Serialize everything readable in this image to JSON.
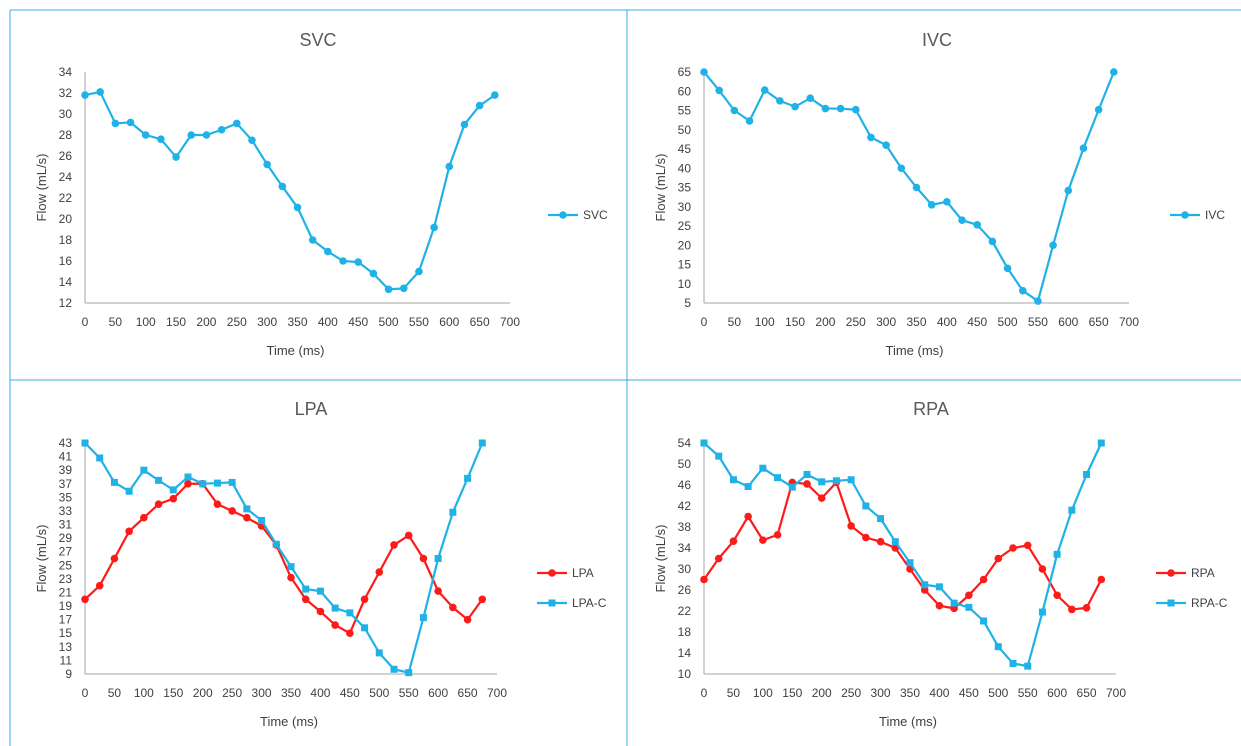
{
  "colors": {
    "blue": "#1fb2e6",
    "red": "#ff1a1a",
    "panel_border": "#3aaedc",
    "axis": "#a6a6a6"
  },
  "chart_data": [
    {
      "type": "line",
      "title": "SVC",
      "xlabel": "Time (ms)",
      "ylabel": "Flow (mL/s)",
      "xlim": [
        0,
        700
      ],
      "ylim": [
        12,
        34
      ],
      "xticks": [
        0,
        50,
        100,
        150,
        200,
        250,
        300,
        350,
        400,
        450,
        500,
        550,
        600,
        650,
        700
      ],
      "yticks": [
        12,
        14,
        16,
        18,
        20,
        22,
        24,
        26,
        28,
        30,
        32,
        34
      ],
      "legend_position": "right",
      "series": [
        {
          "name": "SVC",
          "color": "#1fb2e6",
          "marker": "circle",
          "x": [
            0,
            25,
            50,
            75,
            100,
            125,
            150,
            175,
            200,
            225,
            250,
            275,
            300,
            325,
            350,
            375,
            400,
            425,
            450,
            475,
            500,
            525,
            550,
            575,
            600,
            625,
            650,
            675
          ],
          "y": [
            31.8,
            32.1,
            29.1,
            29.2,
            28.0,
            27.6,
            25.9,
            28.0,
            28.0,
            28.5,
            29.1,
            27.5,
            25.2,
            23.1,
            21.1,
            18.0,
            16.9,
            16.0,
            15.9,
            14.8,
            13.3,
            13.4,
            15.0,
            19.2,
            25.0,
            29.0,
            30.8,
            31.8
          ]
        }
      ]
    },
    {
      "type": "line",
      "title": "IVC",
      "xlabel": "Time (ms)",
      "ylabel": "Flow (mL/s)",
      "xlim": [
        0,
        700
      ],
      "ylim": [
        5,
        65
      ],
      "xticks": [
        0,
        50,
        100,
        150,
        200,
        250,
        300,
        350,
        400,
        450,
        500,
        550,
        600,
        650,
        700
      ],
      "yticks": [
        5,
        10,
        15,
        20,
        25,
        30,
        35,
        40,
        45,
        50,
        55,
        60,
        65
      ],
      "legend_position": "right",
      "series": [
        {
          "name": "IVC",
          "color": "#1fb2e6",
          "marker": "circle",
          "x": [
            0,
            25,
            50,
            75,
            100,
            125,
            150,
            175,
            200,
            225,
            250,
            275,
            300,
            325,
            350,
            375,
            400,
            425,
            450,
            475,
            500,
            525,
            550,
            575,
            600,
            625,
            650,
            675
          ],
          "y": [
            65,
            60.2,
            55.0,
            52.3,
            60.3,
            57.5,
            56.0,
            58.2,
            55.5,
            55.5,
            55.2,
            48.0,
            46.0,
            40.0,
            35.0,
            30.5,
            31.3,
            26.5,
            25.3,
            21.0,
            14.0,
            8.2,
            5.5,
            20.0,
            34.2,
            45.2,
            55.2,
            65.0
          ]
        }
      ]
    },
    {
      "type": "line",
      "title": "LPA",
      "xlabel": "Time (ms)",
      "ylabel": "Flow (mL/s)",
      "xlim": [
        0,
        700
      ],
      "ylim": [
        9,
        43
      ],
      "xticks": [
        0,
        50,
        100,
        150,
        200,
        250,
        300,
        350,
        400,
        450,
        500,
        550,
        600,
        650,
        700
      ],
      "yticks": [
        9,
        11,
        13,
        15,
        17,
        19,
        21,
        23,
        25,
        27,
        29,
        31,
        33,
        35,
        37,
        39,
        41,
        43
      ],
      "legend_position": "right",
      "series": [
        {
          "name": "LPA",
          "color": "#ff1a1a",
          "marker": "circle",
          "x": [
            0,
            25,
            50,
            75,
            100,
            125,
            150,
            175,
            200,
            225,
            250,
            275,
            300,
            325,
            350,
            375,
            400,
            425,
            450,
            475,
            500,
            525,
            550,
            575,
            600,
            625,
            650,
            675
          ],
          "y": [
            20.0,
            22.0,
            26.0,
            30.0,
            32.0,
            34.0,
            34.8,
            37.0,
            37.0,
            34.0,
            33.0,
            32.0,
            30.8,
            28.0,
            23.2,
            20.0,
            18.2,
            16.2,
            15.0,
            20.0,
            24.0,
            28.0,
            29.4,
            26.0,
            21.2,
            18.8,
            17.0,
            20.0
          ]
        },
        {
          "name": "LPA-C",
          "color": "#1fb2e6",
          "marker": "square",
          "x": [
            0,
            25,
            50,
            75,
            100,
            125,
            150,
            175,
            200,
            225,
            250,
            275,
            300,
            325,
            350,
            375,
            400,
            425,
            450,
            475,
            500,
            525,
            550,
            575,
            600,
            625,
            650,
            675
          ],
          "y": [
            43.0,
            40.8,
            37.2,
            35.9,
            39.0,
            37.5,
            36.1,
            38.0,
            37.0,
            37.1,
            37.2,
            33.3,
            31.6,
            28.1,
            24.8,
            21.5,
            21.2,
            18.7,
            18.0,
            15.8,
            12.1,
            9.7,
            9.2,
            17.3,
            26.0,
            32.8,
            37.8,
            43.0
          ]
        }
      ]
    },
    {
      "type": "line",
      "title": "RPA",
      "xlabel": "Time (ms)",
      "ylabel": "Flow (mL/s)",
      "xlim": [
        0,
        700
      ],
      "ylim": [
        10,
        54
      ],
      "xticks": [
        0,
        50,
        100,
        150,
        200,
        250,
        300,
        350,
        400,
        450,
        500,
        550,
        600,
        650,
        700
      ],
      "yticks": [
        10,
        14,
        18,
        22,
        26,
        30,
        34,
        38,
        42,
        46,
        50,
        54
      ],
      "legend_position": "right",
      "series": [
        {
          "name": "RPA",
          "color": "#ff1a1a",
          "marker": "circle",
          "x": [
            0,
            25,
            50,
            75,
            100,
            125,
            150,
            175,
            200,
            225,
            250,
            275,
            300,
            325,
            350,
            375,
            400,
            425,
            450,
            475,
            500,
            525,
            550,
            575,
            600,
            625,
            650,
            675
          ],
          "y": [
            28.0,
            32.0,
            35.3,
            40.0,
            35.5,
            36.5,
            46.5,
            46.2,
            43.5,
            46.5,
            38.2,
            36.0,
            35.2,
            34.0,
            30.0,
            26.0,
            23.0,
            22.5,
            25.0,
            28.0,
            32.0,
            34.0,
            34.5,
            30.0,
            25.0,
            22.3,
            22.6,
            28.0
          ]
        },
        {
          "name": "RPA-C",
          "color": "#1fb2e6",
          "marker": "square",
          "x": [
            0,
            25,
            50,
            75,
            100,
            125,
            150,
            175,
            200,
            225,
            250,
            275,
            300,
            325,
            350,
            375,
            400,
            425,
            450,
            475,
            500,
            525,
            550,
            575,
            600,
            625,
            650,
            675
          ],
          "y": [
            54.0,
            51.5,
            47.0,
            45.7,
            49.2,
            47.4,
            45.6,
            48.0,
            46.6,
            46.8,
            47.0,
            42.0,
            39.6,
            35.2,
            31.2,
            27.0,
            26.6,
            23.5,
            22.7,
            20.1,
            15.2,
            12.0,
            11.5,
            21.8,
            32.8,
            41.2,
            48.0,
            54.0
          ]
        }
      ]
    }
  ]
}
